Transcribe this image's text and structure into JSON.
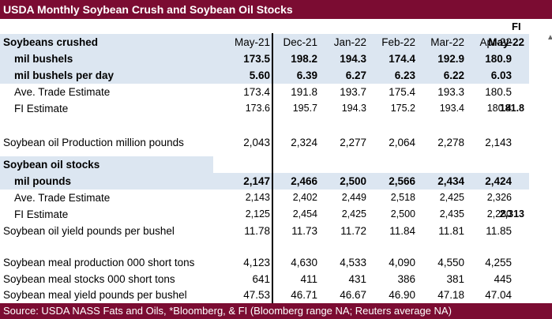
{
  "title": "USDA Monthly Soybean Crush and Soybean Oil Stocks",
  "fi_header": "FI",
  "fi_month": "May-22",
  "months": [
    "May-21",
    "Dec-21",
    "Jan-22",
    "Feb-22",
    "Mar-22",
    "Apr-22"
  ],
  "rows": {
    "crushed_header": "Soybeans crushed",
    "mil_bushels": {
      "label": "mil bushels",
      "values": [
        "173.5",
        "198.2",
        "194.3",
        "174.4",
        "192.9",
        "180.9"
      ]
    },
    "mil_bushels_day": {
      "label": "mil bushels per day",
      "values": [
        "5.60",
        "6.39",
        "6.27",
        "6.23",
        "6.22",
        "6.03"
      ]
    },
    "ave_trade_1": {
      "label": "Ave. Trade Estimate",
      "values": [
        "173.4",
        "191.8",
        "193.7",
        "175.4",
        "193.3",
        "180.5"
      ]
    },
    "fi_est_1": {
      "label": "FI Estimate",
      "values": [
        "173.6",
        "195.7",
        "194.3",
        "175.2",
        "193.4",
        "180.4"
      ],
      "fi": "181.8"
    },
    "oil_production": {
      "label": "Soybean oil Production million pounds",
      "values": [
        "2,043",
        "2,324",
        "2,277",
        "2,064",
        "2,278",
        "2,143"
      ]
    },
    "oil_stocks_header": "Soybean oil stocks",
    "mil_pounds": {
      "label": "mil pounds",
      "values": [
        "2,147",
        "2,466",
        "2,500",
        "2,566",
        "2,434",
        "2,424"
      ]
    },
    "ave_trade_2": {
      "label": "Ave. Trade Estimate",
      "values": [
        "2,143",
        "2,402",
        "2,449",
        "2,518",
        "2,425",
        "2,326"
      ]
    },
    "fi_est_2": {
      "label": "FI Estimate",
      "values": [
        "2,125",
        "2,454",
        "2,425",
        "2,500",
        "2,435",
        "2,280"
      ],
      "fi": "2,313"
    },
    "oil_yield": {
      "label": "Soybean oil yield pounds per bushel",
      "values": [
        "11.78",
        "11.73",
        "11.72",
        "11.84",
        "11.81",
        "11.85"
      ]
    },
    "meal_production": {
      "label": "Soybean meal production 000 short tons",
      "values": [
        "4,123",
        "4,630",
        "4,533",
        "4,090",
        "4,550",
        "4,255"
      ]
    },
    "meal_stocks": {
      "label": "Soybean meal stocks 000 short tons",
      "values": [
        "641",
        "411",
        "431",
        "386",
        "381",
        "445"
      ]
    },
    "meal_yield": {
      "label": "Soybean meal yield pounds per bushel",
      "values": [
        "47.53",
        "46.71",
        "46.67",
        "46.90",
        "47.18",
        "47.04"
      ]
    }
  },
  "footer": "Source: USDA NASS Fats and Oils, *Bloomberg, & FI (Bloomberg range NA;  Reuters average NA)"
}
